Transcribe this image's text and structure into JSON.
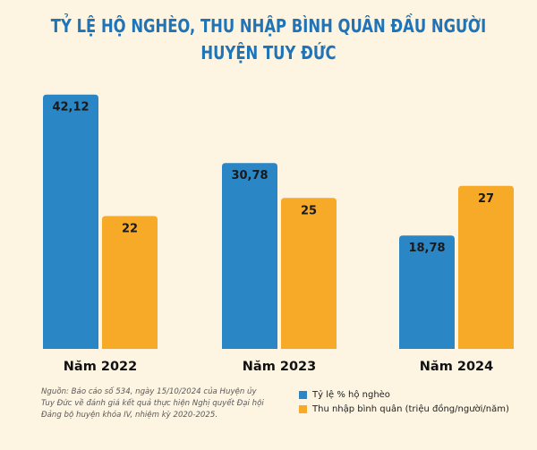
{
  "title": {
    "line1": "TỶ LỆ HỘ NGHÈO, THU NHẬP BÌNH QUÂN ĐẦU NGƯỜI",
    "line2": "HUYỆN TUY ĐỨC"
  },
  "colors": {
    "background": "#fdf4e2",
    "series1": "#2b86c5",
    "series2": "#f7a928",
    "title": "#1f73b7"
  },
  "source_note": "Nguồn: Báo cáo số 534, ngày 15/10/2024 của Huyện ủy Tuy Đức về đánh giá kết quả thực hiện Nghị quyết Đại hội Đảng bộ huyện khóa IV, nhiệm kỳ 2020-2025.",
  "legend": [
    {
      "label": "Tỷ lệ % hộ nghèo",
      "color": "#2b86c5"
    },
    {
      "label": "Thu nhập bình quân (triệu đồng/người/năm)",
      "color": "#f7a928"
    }
  ],
  "chart_data": {
    "type": "bar",
    "title": "TỶ LỆ HỘ NGHÈO, THU NHẬP BÌNH QUÂN ĐẦU NGƯỜI HUYỆN TUY ĐỨC",
    "categories": [
      "Năm 2022",
      "Năm 2023",
      "Năm 2024"
    ],
    "series": [
      {
        "name": "Tỷ lệ % hộ nghèo",
        "values": [
          42.12,
          30.78,
          18.78
        ],
        "labels": [
          "42,12",
          "30,78",
          "18,78"
        ]
      },
      {
        "name": "Thu nhập bình quân (triệu đồng/người/năm)",
        "values": [
          22,
          25,
          27
        ],
        "labels": [
          "22",
          "25",
          "27"
        ]
      }
    ],
    "xlabel": "",
    "ylabel": "",
    "grid": false,
    "legend_position": "bottom-right"
  }
}
